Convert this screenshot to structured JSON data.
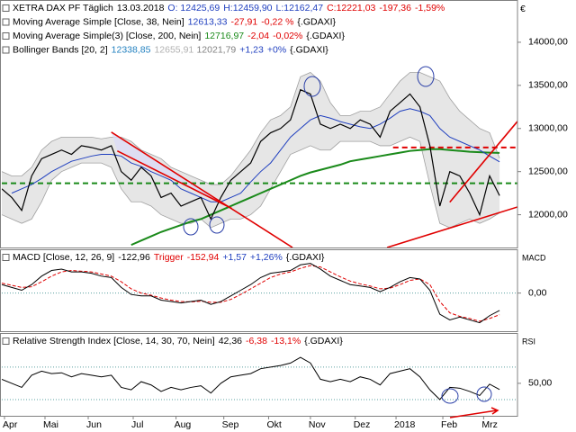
{
  "currency": "€",
  "chart_data": [
    {
      "type": "line",
      "legend": [
        [
          {
            "text": "XETRA DAX PF Täglich",
            "color": "#000000"
          },
          {
            "text": "13.03.2018",
            "color": "#000000"
          },
          {
            "text": "O: 12425,69",
            "color": "#1f3fbf"
          },
          {
            "text": "H:12459,90",
            "color": "#1f3fbf"
          },
          {
            "text": "L:12162,47",
            "color": "#1f3fbf"
          },
          {
            "text": "C:12221,03",
            "color": "#e00000"
          },
          {
            "text": "-197,36",
            "color": "#e00000"
          },
          {
            "text": "-1,59%",
            "color": "#e00000"
          }
        ],
        [
          {
            "text": "Moving Average Simple [Close, 38, Nein]",
            "color": "#000000"
          },
          {
            "text": "12613,33",
            "color": "#1f3fbf"
          },
          {
            "text": "-27,91",
            "color": "#e00000"
          },
          {
            "text": "-0,22 %",
            "color": "#e00000"
          },
          {
            "text": "{.GDAXI}",
            "color": "#000000"
          }
        ],
        [
          {
            "text": "Moving Average Simple(3) [Close, 200, Nein]",
            "color": "#000000"
          },
          {
            "text": "12716,97",
            "color": "#1a8a1a"
          },
          {
            "text": "-2,04",
            "color": "#e00000"
          },
          {
            "text": "-0,02%",
            "color": "#e00000"
          },
          {
            "text": "{.GDAXI}",
            "color": "#000000"
          }
        ],
        [
          {
            "text": "Bollinger Bands [20, 2]",
            "color": "#000000"
          },
          {
            "text": "12338,85",
            "color": "#1f7fbf"
          },
          {
            "text": "12655,91",
            "color": "#b0b0b0"
          },
          {
            "text": "12021,79",
            "color": "#808080"
          },
          {
            "text": "+1,23",
            "color": "#1f3fbf"
          },
          {
            "text": "+0%",
            "color": "#1f3fbf"
          },
          {
            "text": "{.GDAXI}",
            "color": "#000000"
          }
        ]
      ],
      "x": [
        0,
        1,
        2,
        3,
        4,
        5,
        6,
        7,
        8,
        9,
        10,
        11,
        12,
        13,
        14,
        15,
        16,
        17,
        18,
        19,
        20,
        21,
        22,
        23,
        24,
        25,
        26,
        27,
        28,
        29,
        30,
        31,
        32,
        33,
        34,
        35,
        36,
        37,
        38,
        39,
        40,
        41,
        42,
        43,
        44,
        45,
        46,
        47,
        48,
        49,
        50
      ],
      "xlim": [
        0,
        51.8
      ],
      "ylim": [
        11620,
        14490
      ],
      "yticks": [
        {
          "value": 12000,
          "label": "12000,00"
        },
        {
          "value": 12500,
          "label": "12500,00"
        },
        {
          "value": 13000,
          "label": "13000,00"
        },
        {
          "value": 13500,
          "label": "13500,00"
        },
        {
          "value": 14000,
          "label": "14000,00"
        }
      ],
      "band": {
        "upper": [
          12500,
          12450,
          12450,
          12550,
          12750,
          12850,
          12900,
          12900,
          12900,
          12900,
          12880,
          12900,
          12900,
          12850,
          12750,
          12700,
          12650,
          12550,
          12500,
          12450,
          12400,
          12350,
          12350,
          12450,
          12600,
          12750,
          12950,
          13100,
          13150,
          13250,
          13600,
          13650,
          13550,
          13300,
          13150,
          13150,
          13200,
          13200,
          13250,
          13400,
          13550,
          13650,
          13650,
          13600,
          13550,
          13350,
          13200,
          13100,
          13000,
          12950,
          12656
        ],
        "lower": [
          12000,
          11950,
          11900,
          11950,
          12150,
          12400,
          12500,
          12550,
          12600,
          12600,
          12600,
          12550,
          12300,
          12150,
          12150,
          12100,
          12000,
          11950,
          11900,
          11900,
          11950,
          11850,
          11900,
          11950,
          11950,
          12000,
          12100,
          12300,
          12500,
          12700,
          12750,
          12800,
          12750,
          12750,
          12850,
          12850,
          12850,
          12850,
          12800,
          12800,
          12850,
          12900,
          12850,
          12350,
          11900,
          11850,
          11900,
          11950,
          11900,
          11950,
          12022
        ],
        "color": "#a0a0a0",
        "fill": "#e6e6e6"
      },
      "series": [
        {
          "color": "#1a8a1a",
          "width": 2,
          "values": [
            null,
            null,
            null,
            null,
            null,
            null,
            null,
            null,
            null,
            null,
            null,
            null,
            null,
            11650,
            11700,
            11750,
            11800,
            11840,
            11880,
            11920,
            11950,
            12000,
            12050,
            12100,
            12150,
            12200,
            12250,
            12300,
            12350,
            12400,
            12450,
            12490,
            12520,
            12550,
            12580,
            12620,
            12640,
            12660,
            12680,
            12700,
            12720,
            12740,
            12750,
            12760,
            12760,
            12750,
            12740,
            12730,
            12725,
            12720,
            12717
          ]
        },
        {
          "color": "#1f3fbf",
          "width": 1,
          "values": [
            null,
            12250,
            12300,
            12350,
            12420,
            12500,
            12560,
            12620,
            12650,
            12680,
            12700,
            12700,
            12680,
            12600,
            12560,
            12500,
            12450,
            12400,
            12300,
            12250,
            12200,
            12150,
            12150,
            12200,
            12250,
            12380,
            12500,
            12600,
            12750,
            12900,
            13000,
            13100,
            13150,
            13120,
            13080,
            13050,
            13020,
            13000,
            13050,
            13120,
            13200,
            13230,
            13200,
            13150,
            13000,
            12900,
            12850,
            12800,
            12750,
            12680,
            12613
          ]
        },
        {
          "color": "#000000",
          "width": 1.2,
          "values": [
            12300,
            12200,
            12050,
            12450,
            12650,
            12700,
            12750,
            12700,
            12800,
            12780,
            12750,
            12800,
            12500,
            12400,
            12550,
            12450,
            12200,
            12250,
            12100,
            12150,
            12200,
            11950,
            12200,
            12400,
            12500,
            12600,
            12850,
            12950,
            13000,
            13100,
            13450,
            13400,
            13050,
            13000,
            13050,
            13000,
            13100,
            13050,
            12900,
            13200,
            13300,
            13400,
            13250,
            12800,
            12100,
            12500,
            12450,
            12250,
            12000,
            12450,
            12221
          ]
        }
      ],
      "levels": [
        {
          "value": 12365,
          "color": "#1a8a1a",
          "from": 0
        },
        {
          "value": 12780,
          "color": "#e00000",
          "from": 39.3
        }
      ],
      "trendlines": [
        {
          "x": [
            11.0,
            29.2
          ],
          "y": [
            12958,
            11620
          ],
          "color": "#e00000"
        },
        {
          "x": [
            11.6,
            23.1
          ],
          "y": [
            12740,
            12073
          ],
          "color": "#e00000"
        },
        {
          "x": [
            38.7,
            51.8
          ],
          "y": [
            11620,
            12090
          ],
          "color": "#e00000"
        },
        {
          "x": [
            45.0,
            51.8
          ],
          "y": [
            12146,
            13083
          ],
          "color": "#e00000"
        }
      ],
      "channel_fill": "#dcdcf6"
    },
    {
      "type": "line",
      "side_label": "MACD",
      "legend": [
        [
          {
            "text": "MACD [Close, 12, 26, 9]",
            "color": "#000000"
          },
          {
            "text": "-122,96",
            "color": "#000000"
          },
          {
            "text": "Trigger",
            "color": "#e00000"
          },
          {
            "text": "-152,94",
            "color": "#e00000"
          },
          {
            "text": "+1,57",
            "color": "#1f3fbf"
          },
          {
            "text": "+1,26%",
            "color": "#1f3fbf"
          },
          {
            "text": "{.GDAXI}",
            "color": "#000000"
          }
        ]
      ],
      "x": [
        0,
        1,
        2,
        3,
        4,
        5,
        6,
        7,
        8,
        9,
        10,
        11,
        12,
        13,
        14,
        15,
        16,
        17,
        18,
        19,
        20,
        21,
        22,
        23,
        24,
        25,
        26,
        27,
        28,
        29,
        30,
        31,
        32,
        33,
        34,
        35,
        36,
        37,
        38,
        39,
        40,
        41,
        42,
        43,
        44,
        45,
        46,
        47,
        48,
        49,
        50
      ],
      "xlim": [
        0,
        51.8
      ],
      "ylim": [
        -270,
        310
      ],
      "yticks": [
        {
          "value": 0,
          "label": "0,00"
        }
      ],
      "levels": [
        {
          "value": 0,
          "color": "#5aa0a0",
          "from": 0
        }
      ],
      "series": [
        {
          "color": "#e00000",
          "width": 1,
          "dash": true,
          "values": [
            70,
            55,
            40,
            45,
            80,
            120,
            150,
            160,
            155,
            150,
            135,
            120,
            80,
            30,
            0,
            -15,
            -35,
            -50,
            -60,
            -62,
            -58,
            -65,
            -65,
            -45,
            -10,
            30,
            70,
            110,
            135,
            150,
            175,
            195,
            185,
            150,
            115,
            85,
            65,
            50,
            30,
            35,
            60,
            90,
            100,
            60,
            -60,
            -140,
            -165,
            -180,
            -200,
            -180,
            -153
          ]
        },
        {
          "color": "#000000",
          "width": 1,
          "values": [
            60,
            40,
            20,
            60,
            120,
            160,
            170,
            150,
            150,
            140,
            120,
            110,
            40,
            -10,
            -20,
            -20,
            -50,
            -60,
            -70,
            -60,
            -50,
            -80,
            -60,
            -20,
            20,
            60,
            110,
            140,
            150,
            160,
            200,
            210,
            170,
            120,
            90,
            60,
            50,
            40,
            10,
            40,
            80,
            110,
            100,
            20,
            -150,
            -190,
            -170,
            -190,
            -210,
            -160,
            -123
          ]
        }
      ]
    },
    {
      "type": "line",
      "side_label": "RSI",
      "legend": [
        [
          {
            "text": "Relative Strength Index [Close, 14, 30, 70, Nein]",
            "color": "#000000"
          },
          {
            "text": "42,36",
            "color": "#000000"
          },
          {
            "text": "-6,38",
            "color": "#e00000"
          },
          {
            "text": "-13,1%",
            "color": "#e00000"
          },
          {
            "text": "{.GDAXI}",
            "color": "#000000"
          }
        ]
      ],
      "x": [
        0,
        1,
        2,
        3,
        4,
        5,
        6,
        7,
        8,
        9,
        10,
        11,
        12,
        13,
        14,
        15,
        16,
        17,
        18,
        19,
        20,
        21,
        22,
        23,
        24,
        25,
        26,
        27,
        28,
        29,
        30,
        31,
        32,
        33,
        34,
        35,
        36,
        37,
        38,
        39,
        40,
        41,
        42,
        43,
        44,
        45,
        46,
        47,
        48,
        49,
        50
      ],
      "xlim": [
        0,
        51.8
      ],
      "ylim": [
        10,
        112
      ],
      "yticks": [
        {
          "value": 50,
          "label": "50,00"
        }
      ],
      "xticks": [
        {
          "value": 0.27,
          "label": "Apr"
        },
        {
          "value": 4.34,
          "label": "Mai"
        },
        {
          "value": 8.68,
          "label": "Jun"
        },
        {
          "value": 13.2,
          "label": "Jul"
        },
        {
          "value": 17.5,
          "label": "Aug"
        },
        {
          "value": 22.3,
          "label": "Sep"
        },
        {
          "value": 26.8,
          "label": "Okt"
        },
        {
          "value": 31.0,
          "label": "Nov"
        },
        {
          "value": 35.5,
          "label": "Dez"
        },
        {
          "value": 39.6,
          "label": "2018"
        },
        {
          "value": 44.3,
          "label": "Feb"
        },
        {
          "value": 48.4,
          "label": "Mrz"
        }
      ],
      "levels": [
        {
          "value": 30,
          "color": "#5aa0a0",
          "from": 0
        },
        {
          "value": 70,
          "color": "#5aa0a0",
          "from": 0
        }
      ],
      "series": [
        {
          "color": "#000000",
          "width": 1,
          "values": [
            55,
            50,
            45,
            60,
            65,
            62,
            63,
            58,
            62,
            60,
            58,
            60,
            45,
            42,
            52,
            48,
            40,
            45,
            42,
            45,
            47,
            38,
            50,
            58,
            60,
            62,
            68,
            70,
            72,
            75,
            82,
            75,
            55,
            52,
            55,
            52,
            58,
            55,
            48,
            62,
            65,
            68,
            58,
            42,
            30,
            45,
            44,
            40,
            35,
            49,
            42.36
          ]
        }
      ]
    }
  ]
}
